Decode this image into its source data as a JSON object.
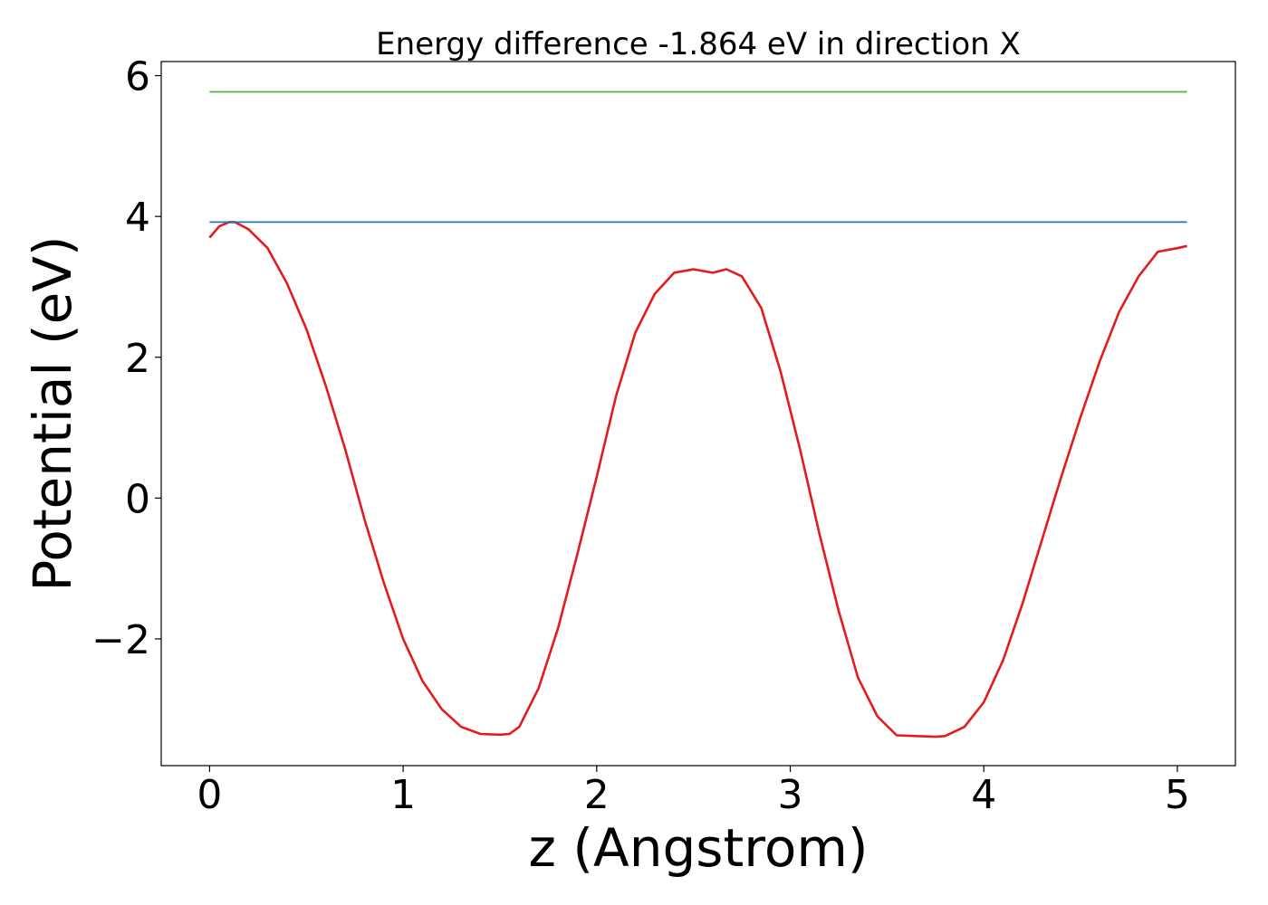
{
  "chart_data": {
    "type": "line",
    "title": "Energy difference -1.864 eV in direction X",
    "xlabel": "z (Angstrom)",
    "ylabel": "Potential (eV)",
    "xlim": [
      -0.25,
      5.3
    ],
    "ylim": [
      -3.8,
      6.2
    ],
    "xticks": [
      0,
      1,
      2,
      3,
      4,
      5
    ],
    "xtick_labels": [
      "0",
      "1",
      "2",
      "3",
      "4",
      "5"
    ],
    "yticks": [
      -2,
      0,
      2,
      4,
      6
    ],
    "ytick_labels": [
      "−2",
      "0",
      "2",
      "4",
      "6"
    ],
    "grid": false,
    "legend": "none",
    "series": [
      {
        "color": "#e41a1c",
        "x": [
          0.0,
          0.05,
          0.1,
          0.13,
          0.2,
          0.3,
          0.4,
          0.5,
          0.6,
          0.7,
          0.8,
          0.9,
          1.0,
          1.1,
          1.2,
          1.3,
          1.4,
          1.5,
          1.55,
          1.6,
          1.7,
          1.8,
          1.9,
          2.0,
          2.1,
          2.2,
          2.3,
          2.4,
          2.5,
          2.6,
          2.67,
          2.75,
          2.85,
          2.95,
          3.05,
          3.15,
          3.25,
          3.35,
          3.45,
          3.55,
          3.65,
          3.75,
          3.8,
          3.9,
          4.0,
          4.1,
          4.2,
          4.3,
          4.4,
          4.5,
          4.6,
          4.7,
          4.8,
          4.9,
          5.0,
          5.05
        ],
        "y": [
          3.7,
          3.86,
          3.92,
          3.92,
          3.82,
          3.55,
          3.05,
          2.4,
          1.6,
          0.7,
          -0.3,
          -1.2,
          -2.0,
          -2.6,
          -3.0,
          -3.25,
          -3.35,
          -3.36,
          -3.35,
          -3.25,
          -2.7,
          -1.85,
          -0.8,
          0.3,
          1.45,
          2.35,
          2.9,
          3.2,
          3.25,
          3.2,
          3.25,
          3.15,
          2.7,
          1.8,
          0.7,
          -0.5,
          -1.6,
          -2.55,
          -3.1,
          -3.37,
          -3.38,
          -3.39,
          -3.38,
          -3.25,
          -2.9,
          -2.3,
          -1.5,
          -0.6,
          0.3,
          1.15,
          1.95,
          2.65,
          3.15,
          3.5,
          3.55,
          3.58
        ]
      },
      {
        "color": "#1f77b4",
        "x": [
          0.0,
          5.05
        ],
        "y": [
          3.92,
          3.92
        ]
      },
      {
        "color": "#4daf4a",
        "x": [
          0.0,
          5.05
        ],
        "y": [
          5.77,
          5.77
        ]
      }
    ]
  }
}
